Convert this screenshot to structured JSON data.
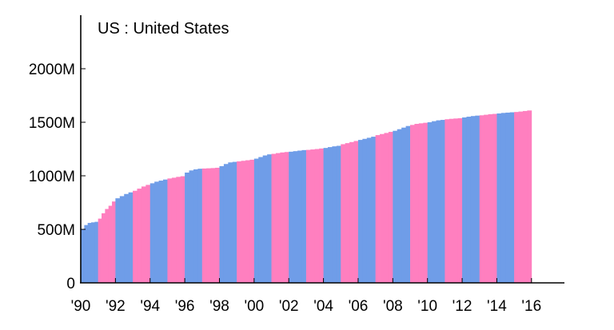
{
  "chart_data": {
    "type": "bar",
    "title": "US : United States",
    "xlabel": "",
    "ylabel": "",
    "ylim": [
      0,
      2500
    ],
    "xlim": [
      1990,
      2017.9
    ],
    "y_ticks": [
      {
        "value": 0,
        "label": "0"
      },
      {
        "value": 500,
        "label": "500M"
      },
      {
        "value": 1000,
        "label": "1000M"
      },
      {
        "value": 1500,
        "label": "1500M"
      },
      {
        "value": 2000,
        "label": "2000M"
      }
    ],
    "x_ticks": [
      {
        "value": 1990,
        "label": "'90"
      },
      {
        "value": 1992,
        "label": "'92"
      },
      {
        "value": 1994,
        "label": "'94"
      },
      {
        "value": 1996,
        "label": "'96"
      },
      {
        "value": 1998,
        "label": "'98"
      },
      {
        "value": 2000,
        "label": "'00"
      },
      {
        "value": 2002,
        "label": "'02"
      },
      {
        "value": 2004,
        "label": "'04"
      },
      {
        "value": 2006,
        "label": "'06"
      },
      {
        "value": 2008,
        "label": "'08"
      },
      {
        "value": 2010,
        "label": "'10"
      },
      {
        "value": 2012,
        "label": "'12"
      },
      {
        "value": 2014,
        "label": "'14"
      },
      {
        "value": 2016,
        "label": "'16"
      }
    ],
    "colors": {
      "even_year": "#6f9de8",
      "odd_year": "#ff7fbf"
    },
    "series": [
      {
        "years": [
          {
            "year": 1990,
            "values": [
              500,
              540,
              560,
              565,
              570
            ]
          },
          {
            "year": 1991,
            "values": [
              600,
              650,
              690,
              720,
              760
            ]
          },
          {
            "year": 1992,
            "values": [
              790,
              810,
              830,
              845
            ]
          },
          {
            "year": 1993,
            "values": [
              860,
              880,
              900,
              915
            ]
          },
          {
            "year": 1994,
            "values": [
              930,
              945,
              955,
              965
            ]
          },
          {
            "year": 1995,
            "values": [
              975,
              982,
              990,
              996
            ]
          },
          {
            "year": 1996,
            "values": [
              1030,
              1050,
              1060,
              1066
            ]
          },
          {
            "year": 1997,
            "values": [
              1068,
              1070,
              1072,
              1075
            ]
          },
          {
            "year": 1998,
            "values": [
              1090,
              1110,
              1125,
              1130
            ]
          },
          {
            "year": 1999,
            "values": [
              1135,
              1140,
              1145,
              1150
            ]
          },
          {
            "year": 2000,
            "values": [
              1160,
              1175,
              1190,
              1200
            ]
          },
          {
            "year": 2001,
            "values": [
              1205,
              1212,
              1218,
              1222
            ]
          },
          {
            "year": 2002,
            "values": [
              1225,
              1230,
              1235,
              1240
            ]
          },
          {
            "year": 2003,
            "values": [
              1242,
              1246,
              1250,
              1255
            ]
          },
          {
            "year": 2004,
            "values": [
              1260,
              1268,
              1275,
              1280
            ]
          },
          {
            "year": 2005,
            "values": [
              1295,
              1305,
              1315,
              1325
            ]
          },
          {
            "year": 2006,
            "values": [
              1335,
              1345,
              1355,
              1365
            ]
          },
          {
            "year": 2007,
            "values": [
              1380,
              1390,
              1400,
              1410
            ]
          },
          {
            "year": 2008,
            "values": [
              1420,
              1435,
              1450,
              1465
            ]
          },
          {
            "year": 2009,
            "values": [
              1475,
              1485,
              1490,
              1495
            ]
          },
          {
            "year": 2010,
            "values": [
              1500,
              1510,
              1518,
              1522
            ]
          },
          {
            "year": 2011,
            "values": [
              1528,
              1532,
              1535,
              1538
            ]
          },
          {
            "year": 2012,
            "values": [
              1545,
              1552,
              1558,
              1562
            ]
          },
          {
            "year": 2013,
            "values": [
              1565,
              1570,
              1575,
              1578
            ]
          },
          {
            "year": 2014,
            "values": [
              1582,
              1587,
              1590,
              1593
            ]
          },
          {
            "year": 2015,
            "values": [
              1596,
              1600,
              1605,
              1610
            ]
          }
        ]
      }
    ]
  }
}
